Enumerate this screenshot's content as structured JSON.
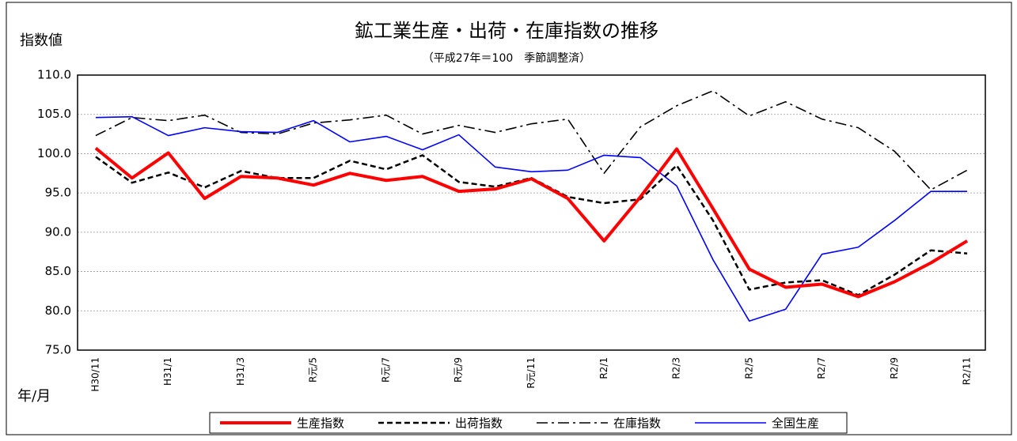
{
  "chart_data": {
    "type": "line",
    "title": "鉱工業生産・出荷・在庫指数の推移",
    "subtitle": "（平成27年＝100　季節調整済）",
    "y_label": "指数値",
    "x_label": "年/月",
    "categories": [
      "H30/11",
      null,
      "H31/1",
      null,
      "H31/3",
      null,
      "R元/5",
      null,
      "R元/7",
      null,
      "R元/9",
      null,
      "R元/11",
      null,
      "R2/1",
      null,
      "R2/3",
      null,
      "R2/5",
      null,
      "R2/7",
      null,
      "R2/9",
      null,
      "R2/11"
    ],
    "ylim": [
      75,
      110
    ],
    "yticks": [
      {
        "value": 75,
        "label": "75.0"
      },
      {
        "value": 80,
        "label": "80.0"
      },
      {
        "value": 85,
        "label": "85.0"
      },
      {
        "value": 90,
        "label": "90.0"
      },
      {
        "value": 95,
        "label": "95.0"
      },
      {
        "value": 100,
        "label": "100.0"
      },
      {
        "value": 105,
        "label": "105.0"
      },
      {
        "value": 110,
        "label": "110.0"
      }
    ],
    "grid": true,
    "legend": "bottom",
    "series": [
      {
        "name": "生産指数",
        "color": "#ff0000",
        "style": "solid-thick",
        "values": [
          100.7,
          96.9,
          100.1,
          94.3,
          97.1,
          96.9,
          96.0,
          97.5,
          96.6,
          97.1,
          95.2,
          95.5,
          96.8,
          94.3,
          88.9,
          94.5,
          100.6,
          93.0,
          85.3,
          83.0,
          83.4,
          81.8,
          83.7,
          86.1,
          88.9
        ]
      },
      {
        "name": "出荷指数",
        "color": "#000000",
        "style": "dashed",
        "values": [
          99.6,
          96.3,
          97.6,
          95.7,
          97.8,
          96.9,
          96.9,
          99.1,
          98.0,
          99.8,
          96.4,
          95.8,
          96.9,
          94.5,
          93.7,
          94.2,
          98.5,
          91.5,
          82.7,
          83.6,
          83.9,
          82.0,
          84.6,
          87.7,
          87.3
        ]
      },
      {
        "name": "在庫指数",
        "color": "#000000",
        "style": "dashdot",
        "values": [
          102.3,
          104.6,
          104.2,
          104.9,
          102.7,
          102.5,
          103.9,
          104.3,
          104.9,
          102.5,
          103.6,
          102.7,
          103.8,
          104.4,
          97.5,
          103.4,
          106.1,
          108.0,
          104.8,
          106.6,
          104.4,
          103.3,
          100.3,
          95.4,
          97.9
        ]
      },
      {
        "name": "全国生産",
        "color": "#0000ff",
        "style": "solid",
        "values": [
          104.6,
          104.7,
          102.3,
          103.3,
          102.8,
          102.7,
          104.2,
          101.5,
          102.2,
          100.5,
          102.4,
          98.3,
          97.7,
          97.9,
          99.8,
          99.5,
          95.9,
          86.5,
          78.7,
          80.2,
          87.2,
          88.1,
          91.5,
          95.2,
          95.2
        ]
      }
    ]
  }
}
